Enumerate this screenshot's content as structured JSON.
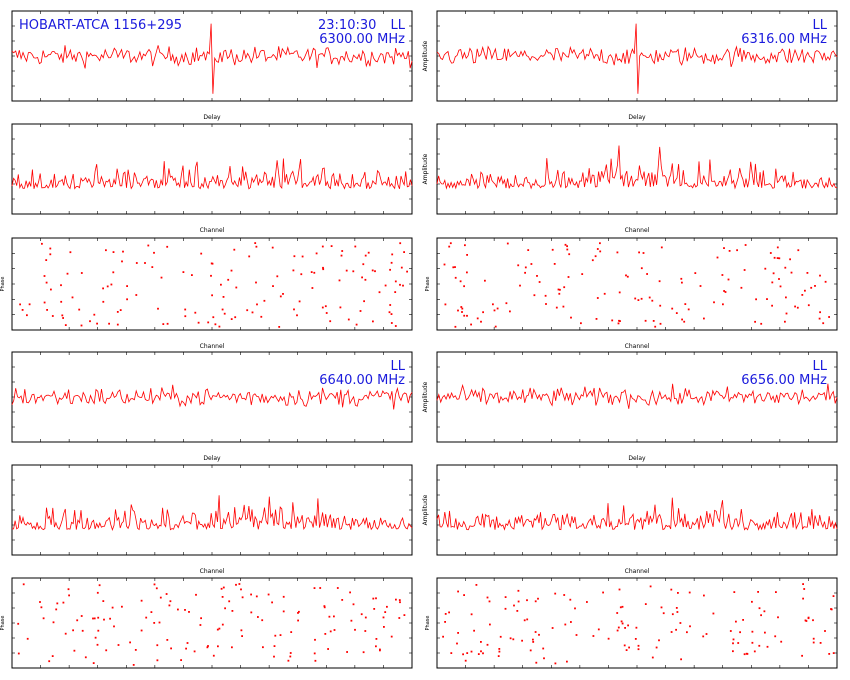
{
  "header": {
    "title": "HOBART-ATCA 1156+295",
    "time": "23:10:30"
  },
  "bands": [
    {
      "polarization": "LL",
      "frequency": "6300.00 MHz"
    },
    {
      "polarization": "LL",
      "frequency": "6316.00 MHz"
    },
    {
      "polarization": "LL",
      "frequency": "6640.00 MHz"
    },
    {
      "polarization": "LL",
      "frequency": "6656.00 MHz"
    }
  ],
  "labels": {
    "delay": "Delay",
    "channel": "Channel",
    "amplitude": "Amplitude",
    "phase": "Phase"
  },
  "colors": {
    "data": "#ff0000",
    "annotation": "#1a1adc",
    "axes": "#000000"
  },
  "chart_data": [
    {
      "type": "line",
      "panel": "delay",
      "band": 0,
      "xlabel": "Delay",
      "ylabel": "",
      "n_points": 220,
      "ylim": [
        -6,
        6
      ],
      "note_values": "noise-like trace with spike near center"
    },
    {
      "type": "line",
      "panel": "delay",
      "band": 1,
      "xlabel": "Delay",
      "ylabel": "Amplitude",
      "n_points": 220,
      "ylim": [
        -6,
        6
      ]
    },
    {
      "type": "line",
      "panel": "amplitude",
      "band": 0,
      "xlabel": "Channel",
      "ylabel": "",
      "n_points": 256,
      "ylim": [
        0,
        5
      ]
    },
    {
      "type": "line",
      "panel": "amplitude",
      "band": 1,
      "xlabel": "Channel",
      "ylabel": "Amplitude",
      "n_points": 256,
      "ylim": [
        0,
        5
      ]
    },
    {
      "type": "scatter",
      "panel": "phase",
      "band": 0,
      "xlabel": "Channel",
      "ylabel": "Phase",
      "n_points": 256,
      "ylim": [
        -180,
        180
      ]
    },
    {
      "type": "scatter",
      "panel": "phase",
      "band": 1,
      "xlabel": "Channel",
      "ylabel": "Phase",
      "n_points": 256,
      "ylim": [
        -180,
        180
      ]
    },
    {
      "type": "line",
      "panel": "delay",
      "band": 2,
      "xlabel": "Delay",
      "ylabel": "",
      "n_points": 220,
      "ylim": [
        -6,
        6
      ]
    },
    {
      "type": "line",
      "panel": "delay",
      "band": 3,
      "xlabel": "Delay",
      "ylabel": "Amplitude",
      "n_points": 220,
      "ylim": [
        -6,
        6
      ]
    },
    {
      "type": "line",
      "panel": "amplitude",
      "band": 2,
      "xlabel": "Channel",
      "ylabel": "",
      "n_points": 256,
      "ylim": [
        0,
        5
      ]
    },
    {
      "type": "line",
      "panel": "amplitude",
      "band": 3,
      "xlabel": "Channel",
      "ylabel": "Amplitude",
      "n_points": 256,
      "ylim": [
        0,
        5
      ]
    },
    {
      "type": "scatter",
      "panel": "phase",
      "band": 2,
      "xlabel": "Channel",
      "ylabel": "Phase",
      "n_points": 256,
      "ylim": [
        -180,
        180
      ]
    },
    {
      "type": "scatter",
      "panel": "phase",
      "band": 3,
      "xlabel": "Channel",
      "ylabel": "Phase",
      "n_points": 256,
      "ylim": [
        -180,
        180
      ]
    }
  ]
}
